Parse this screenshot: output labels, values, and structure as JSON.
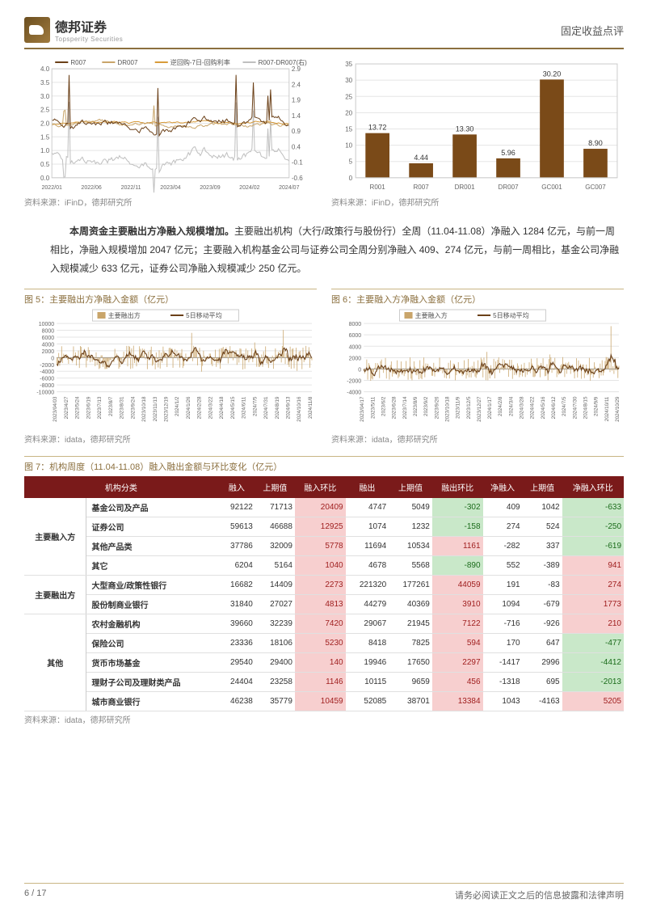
{
  "header": {
    "brand": "德邦证券",
    "brand_sub": "Topsperity Securities",
    "right": "固定收益点评"
  },
  "colors": {
    "accent": "#8b6f3e",
    "dark_brown": "#6b4018",
    "light_brown": "#c9a56a",
    "grey": "#bfbfbf",
    "axis": "#888888",
    "grid": "#e5e5e5",
    "table_header": "#7a1a1a",
    "pos_bg": "#f7cfcf",
    "pos_fg": "#a02020",
    "neg_bg": "#c9e8c9",
    "neg_fg": "#1a6b1a"
  },
  "fig_line": {
    "legend": [
      "R007",
      "DR007",
      "逆回购-7日-回购利率",
      "R007-DR007(右)"
    ],
    "legend_colors": [
      "#6b4018",
      "#c9a56a",
      "#d89b3a",
      "#bfbfbf"
    ],
    "x_labels": [
      "2022/01",
      "2022/06",
      "2022/11",
      "2023/04",
      "2023/09",
      "2024/02",
      "2024/07"
    ],
    "y_left": {
      "min": 0.0,
      "max": 4.0,
      "step": 0.5
    },
    "y_right": {
      "min": -0.6,
      "max": 2.9,
      "step": 0.5
    },
    "source": "资料来源：iFinD，德邦研究所"
  },
  "fig_bar": {
    "categories": [
      "R001",
      "R007",
      "DR001",
      "DR007",
      "GC001",
      "GC007"
    ],
    "values": [
      13.72,
      4.44,
      13.3,
      5.96,
      30.2,
      8.9
    ],
    "bar_color": "#7a4a18",
    "y": {
      "min": 0,
      "max": 35,
      "step": 5
    },
    "source": "资料来源：iFinD，德邦研究所"
  },
  "body": {
    "lead": "本周资金主要融出方净融入规模增加。",
    "rest": "主要融出机构（大行/政策行与股份行）全周（11.04-11.08）净融入 1284 亿元，与前一周相比，净融入规模增加 2047 亿元；主要融入机构基金公司与证券公司全周分别净融入 409、274 亿元，与前一周相比，基金公司净融入规模减少 633 亿元，证券公司净融入规模减少 250 亿元。"
  },
  "fig5": {
    "title": "图 5：主要融出方净融入金额（亿元）",
    "legend": [
      "主要融出方",
      "5日移动平均"
    ],
    "legend_colors": [
      "#c9a56a",
      "#6b4018"
    ],
    "y": {
      "min": -10000,
      "max": 10000,
      "step": 2000
    },
    "x_labels": [
      "2023/04/03",
      "2023/4/27",
      "2023/5/24",
      "2023/6/19",
      "2023/7/13",
      "2023/8/7",
      "2023/8/31",
      "2023/9/24",
      "2023/10/18",
      "2023/11/13",
      "2023/12/19",
      "2024/1/2",
      "2024/1/26",
      "2024/2/28",
      "2024/3/22",
      "2024/4/18",
      "2024/5/15",
      "2024/6/11",
      "2024/7/5",
      "2024/7/31",
      "2024/8/19",
      "2024/9/13",
      "2024/10/16",
      "2024/11/8"
    ],
    "source": "资料来源：idata，德邦研究所"
  },
  "fig6": {
    "title": "图 6：主要融入方净融入金额（亿元）",
    "legend": [
      "主要融入方",
      "5日移动平均"
    ],
    "legend_colors": [
      "#c9a56a",
      "#6b4018"
    ],
    "y": {
      "min": -4000,
      "max": 8000,
      "step": 2000
    },
    "x_labels": [
      "2023/04/17",
      "2023/5/11",
      "2023/6/2",
      "2023/6/28",
      "2023/7/14",
      "2023/8/9",
      "2023/9/2",
      "2023/9/26",
      "2023/10/18",
      "2023/11/9",
      "2023/12/5",
      "2023/12/27",
      "2024/1/17",
      "2024/2/8",
      "2024/3/4",
      "2024/3/28",
      "2024/4/22",
      "2024/5/16",
      "2024/6/12",
      "2024/7/5",
      "2024/7/30",
      "2024/8/15",
      "2024/9/9",
      "2024/10/11",
      "2024/10/29"
    ],
    "source": "资料来源：idata，德邦研究所"
  },
  "fig7": {
    "title": "图 7：机构周度（11.04-11.08）融入融出金额与环比变化（亿元）",
    "columns": [
      "机构分类",
      "融入",
      "上期值",
      "融入环比",
      "融出",
      "上期值",
      "融出环比",
      "净融入",
      "上期值",
      "净融入环比"
    ],
    "groups": [
      {
        "name": "主要融入方",
        "rows": [
          {
            "n": "基金公司及产品",
            "v": [
              92122,
              71713,
              20409,
              4747,
              5049,
              -302,
              409,
              1042,
              -633
            ]
          },
          {
            "n": "证券公司",
            "v": [
              59613,
              46688,
              12925,
              1074,
              1232,
              -158,
              274,
              524,
              -250
            ]
          },
          {
            "n": "其他产品类",
            "v": [
              37786,
              32009,
              5778,
              11694,
              10534,
              1161,
              -282,
              337,
              -619
            ]
          },
          {
            "n": "其它",
            "v": [
              6204,
              5164,
              1040,
              4678,
              5568,
              -890,
              552,
              -389,
              941
            ]
          }
        ]
      },
      {
        "name": "主要融出方",
        "rows": [
          {
            "n": "大型商业/政策性银行",
            "v": [
              16682,
              14409,
              2273,
              221320,
              177261,
              44059,
              191,
              -83,
              274
            ]
          },
          {
            "n": "股份制商业银行",
            "v": [
              31840,
              27027,
              4813,
              44279,
              40369,
              3910,
              1094,
              -679,
              1773
            ]
          }
        ]
      },
      {
        "name": "其他",
        "rows": [
          {
            "n": "农村金融机构",
            "v": [
              39660,
              32239,
              7420,
              29067,
              21945,
              7122,
              -716,
              -926,
              210
            ]
          },
          {
            "n": "保险公司",
            "v": [
              23336,
              18106,
              5230,
              8418,
              7825,
              594,
              170,
              647,
              -477
            ]
          },
          {
            "n": "货币市场基金",
            "v": [
              29540,
              29400,
              140,
              19946,
              17650,
              2297,
              -1417,
              2996,
              -4412
            ]
          },
          {
            "n": "理财子公司及理财类产品",
            "v": [
              24404,
              23258,
              1146,
              10115,
              9659,
              456,
              -1318,
              695,
              -2013
            ]
          },
          {
            "n": "城市商业银行",
            "v": [
              46238,
              35779,
              10459,
              52085,
              38701,
              13384,
              1043,
              -4163,
              5205
            ]
          }
        ]
      }
    ],
    "diff_cols": [
      2,
      5,
      8
    ],
    "source": "资料来源：idata，德邦研究所"
  },
  "footer": {
    "page": "6 / 17",
    "disclaimer": "请务必阅读正文之后的信息披露和法律声明"
  }
}
